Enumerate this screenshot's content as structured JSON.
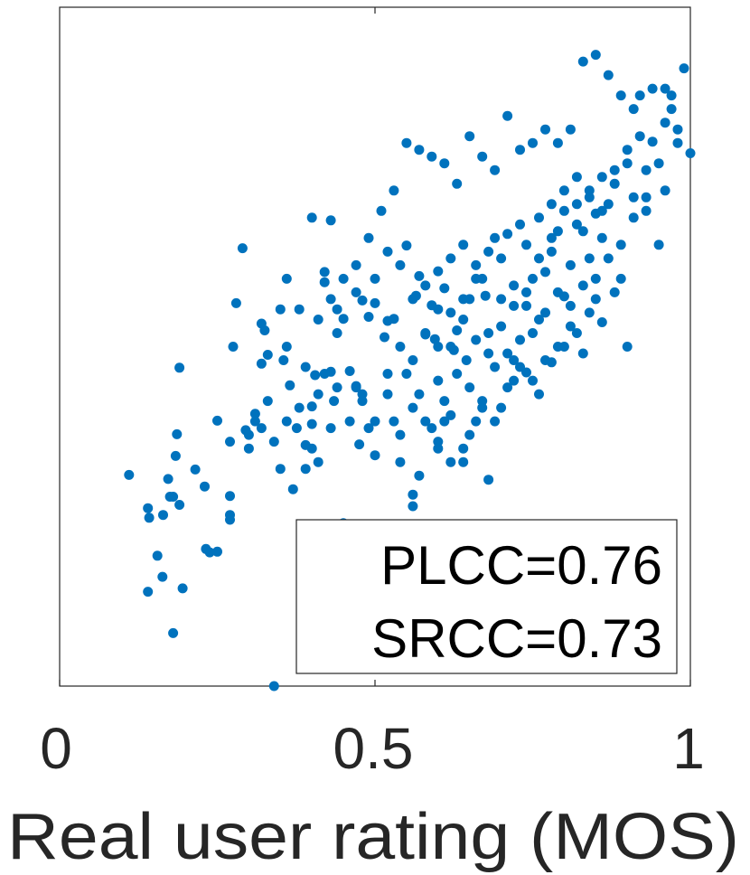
{
  "chart_data": {
    "type": "scatter",
    "title": "",
    "xlabel": "Real user rating (MOS)",
    "ylabel": "",
    "xlim": [
      0,
      1
    ],
    "ylim": [
      0,
      1
    ],
    "xticks": [
      0,
      0.5,
      1
    ],
    "xtick_labels": [
      "0",
      "0.5",
      "1"
    ],
    "grid": false,
    "marker_color": "#0072bd",
    "annotation": {
      "placement": "bottom-right",
      "lines": [
        "PLCC=0.76",
        "SRCC=0.73"
      ]
    },
    "points": [
      [
        0.11,
        0.311
      ],
      [
        0.14,
        0.262
      ],
      [
        0.142,
        0.248
      ],
      [
        0.14,
        0.139
      ],
      [
        0.155,
        0.192
      ],
      [
        0.163,
        0.161
      ],
      [
        0.164,
        0.252
      ],
      [
        0.172,
        0.305
      ],
      [
        0.175,
        0.279
      ],
      [
        0.18,
        0.279
      ],
      [
        0.18,
        0.078
      ],
      [
        0.184,
        0.339
      ],
      [
        0.186,
        0.371
      ],
      [
        0.19,
        0.267
      ],
      [
        0.195,
        0.144
      ],
      [
        0.19,
        0.469
      ],
      [
        0.215,
        0.319
      ],
      [
        0.23,
        0.294
      ],
      [
        0.232,
        0.202
      ],
      [
        0.238,
        0.197
      ],
      [
        0.25,
        0.198
      ],
      [
        0.25,
        0.391
      ],
      [
        0.27,
        0.245
      ],
      [
        0.27,
        0.252
      ],
      [
        0.275,
        0.5
      ],
      [
        0.28,
        0.564
      ],
      [
        0.29,
        0.645
      ],
      [
        0.295,
        0.377
      ],
      [
        0.31,
        0.401
      ],
      [
        0.32,
        0.534
      ],
      [
        0.32,
        0.475
      ],
      [
        0.325,
        0.524
      ],
      [
        0.33,
        0.488
      ],
      [
        0.35,
        0.555
      ],
      [
        0.36,
        0.5
      ],
      [
        0.365,
        0.443
      ],
      [
        0.376,
        0.38
      ],
      [
        0.38,
        0.555
      ],
      [
        0.39,
        0.355
      ],
      [
        0.4,
        0.386
      ],
      [
        0.4,
        0.412
      ],
      [
        0.405,
        0.458
      ],
      [
        0.41,
        0.54
      ],
      [
        0.42,
        0.61
      ],
      [
        0.42,
        0.595
      ],
      [
        0.43,
        0.463
      ],
      [
        0.43,
        0.38
      ],
      [
        0.435,
        0.42
      ],
      [
        0.44,
        0.555
      ],
      [
        0.45,
        0.541
      ],
      [
        0.46,
        0.464
      ],
      [
        0.47,
        0.442
      ],
      [
        0.475,
        0.356
      ],
      [
        0.48,
        0.568
      ],
      [
        0.49,
        0.544
      ],
      [
        0.5,
        0.564
      ],
      [
        0.515,
        0.514
      ],
      [
        0.52,
        0.538
      ],
      [
        0.53,
        0.541
      ],
      [
        0.54,
        0.62
      ],
      [
        0.55,
        0.649
      ],
      [
        0.56,
        0.57
      ],
      [
        0.565,
        0.575
      ],
      [
        0.57,
        0.604
      ],
      [
        0.58,
        0.518
      ],
      [
        0.59,
        0.561
      ],
      [
        0.595,
        0.511
      ],
      [
        0.6,
        0.611
      ],
      [
        0.6,
        0.555
      ],
      [
        0.61,
        0.586
      ],
      [
        0.62,
        0.63
      ],
      [
        0.625,
        0.495
      ],
      [
        0.63,
        0.524
      ],
      [
        0.64,
        0.65
      ],
      [
        0.645,
        0.48
      ],
      [
        0.65,
        0.57
      ],
      [
        0.66,
        0.62
      ],
      [
        0.67,
        0.6
      ],
      [
        0.675,
        0.575
      ],
      [
        0.68,
        0.52
      ],
      [
        0.69,
        0.66
      ],
      [
        0.7,
        0.63
      ],
      [
        0.71,
        0.666
      ],
      [
        0.72,
        0.59
      ],
      [
        0.73,
        0.68
      ],
      [
        0.74,
        0.56
      ],
      [
        0.75,
        0.6
      ],
      [
        0.76,
        0.54
      ],
      [
        0.77,
        0.61
      ],
      [
        0.78,
        0.64
      ],
      [
        0.79,
        0.67
      ],
      [
        0.8,
        0.574
      ],
      [
        0.81,
        0.62
      ],
      [
        0.82,
        0.71
      ],
      [
        0.83,
        0.67
      ],
      [
        0.84,
        0.63
      ],
      [
        0.85,
        0.696
      ],
      [
        0.86,
        0.66
      ],
      [
        0.87,
        0.71
      ],
      [
        0.88,
        0.74
      ],
      [
        0.89,
        0.6
      ],
      [
        0.9,
        0.77
      ],
      [
        0.91,
        0.72
      ],
      [
        0.92,
        0.81
      ],
      [
        0.93,
        0.76
      ],
      [
        0.94,
        0.802
      ],
      [
        0.95,
        0.77
      ],
      [
        0.96,
        0.83
      ],
      [
        0.97,
        0.85
      ],
      [
        0.98,
        0.82
      ],
      [
        0.99,
        0.91
      ],
      [
        1.0,
        0.785
      ],
      [
        0.95,
        0.65
      ],
      [
        0.93,
        0.7
      ],
      [
        0.56,
        0.282
      ],
      [
        0.56,
        0.265
      ],
      [
        0.42,
        0.132
      ],
      [
        0.34,
        0.0
      ],
      [
        0.54,
        0.33
      ],
      [
        0.6,
        0.35
      ],
      [
        0.62,
        0.399
      ],
      [
        0.64,
        0.33
      ],
      [
        0.66,
        0.39
      ],
      [
        0.68,
        0.304
      ],
      [
        0.7,
        0.41
      ],
      [
        0.72,
        0.45
      ],
      [
        0.74,
        0.462
      ],
      [
        0.76,
        0.43
      ],
      [
        0.78,
        0.477
      ],
      [
        0.8,
        0.5
      ],
      [
        0.82,
        0.52
      ],
      [
        0.84,
        0.55
      ],
      [
        0.86,
        0.536
      ],
      [
        0.88,
        0.58
      ],
      [
        0.9,
        0.5
      ],
      [
        0.55,
        0.46
      ],
      [
        0.57,
        0.43
      ],
      [
        0.59,
        0.38
      ],
      [
        0.61,
        0.42
      ],
      [
        0.63,
        0.46
      ],
      [
        0.65,
        0.44
      ],
      [
        0.67,
        0.41
      ],
      [
        0.69,
        0.47
      ],
      [
        0.71,
        0.49
      ],
      [
        0.73,
        0.51
      ],
      [
        0.75,
        0.52
      ],
      [
        0.77,
        0.55
      ],
      [
        0.79,
        0.58
      ],
      [
        0.81,
        0.56
      ],
      [
        0.83,
        0.59
      ],
      [
        0.85,
        0.6
      ],
      [
        0.87,
        0.63
      ],
      [
        0.89,
        0.65
      ],
      [
        0.91,
        0.69
      ],
      [
        0.48,
        0.43
      ],
      [
        0.5,
        0.39
      ],
      [
        0.52,
        0.46
      ],
      [
        0.54,
        0.5
      ],
      [
        0.56,
        0.48
      ],
      [
        0.58,
        0.52
      ],
      [
        0.6,
        0.45
      ],
      [
        0.62,
        0.5
      ],
      [
        0.64,
        0.54
      ],
      [
        0.66,
        0.51
      ],
      [
        0.68,
        0.49
      ],
      [
        0.7,
        0.53
      ],
      [
        0.72,
        0.48
      ],
      [
        0.74,
        0.58
      ],
      [
        0.76,
        0.63
      ],
      [
        0.78,
        0.66
      ],
      [
        0.8,
        0.7
      ],
      [
        0.82,
        0.68
      ],
      [
        0.84,
        0.72
      ],
      [
        0.86,
        0.75
      ],
      [
        0.4,
        0.69
      ],
      [
        0.43,
        0.686
      ],
      [
        0.36,
        0.6
      ],
      [
        0.355,
        0.48
      ],
      [
        0.41,
        0.43
      ],
      [
        0.5,
        0.6
      ],
      [
        0.52,
        0.64
      ],
      [
        0.44,
        0.52
      ],
      [
        0.47,
        0.58
      ],
      [
        0.38,
        0.41
      ],
      [
        0.39,
        0.47
      ],
      [
        0.58,
        0.59
      ],
      [
        0.6,
        0.5
      ],
      [
        0.62,
        0.55
      ],
      [
        0.64,
        0.57
      ],
      [
        0.66,
        0.6
      ],
      [
        0.68,
        0.64
      ],
      [
        0.7,
        0.57
      ],
      [
        0.72,
        0.56
      ],
      [
        0.74,
        0.65
      ],
      [
        0.76,
        0.69
      ],
      [
        0.78,
        0.71
      ],
      [
        0.8,
        0.73
      ],
      [
        0.82,
        0.75
      ],
      [
        0.84,
        0.73
      ],
      [
        0.86,
        0.7
      ],
      [
        0.88,
        0.76
      ],
      [
        0.9,
        0.79
      ],
      [
        0.92,
        0.87
      ],
      [
        0.94,
        0.88
      ],
      [
        0.96,
        0.88
      ],
      [
        0.98,
        0.8
      ],
      [
        0.97,
        0.87
      ],
      [
        0.96,
        0.73
      ],
      [
        0.93,
        0.72
      ],
      [
        0.91,
        0.85
      ],
      [
        0.89,
        0.87
      ],
      [
        0.87,
        0.9
      ],
      [
        0.85,
        0.93
      ],
      [
        0.83,
        0.92
      ],
      [
        0.81,
        0.82
      ],
      [
        0.79,
        0.8
      ],
      [
        0.77,
        0.82
      ],
      [
        0.75,
        0.8
      ],
      [
        0.73,
        0.79
      ],
      [
        0.71,
        0.84
      ],
      [
        0.69,
        0.76
      ],
      [
        0.67,
        0.78
      ],
      [
        0.65,
        0.81
      ],
      [
        0.63,
        0.74
      ],
      [
        0.61,
        0.77
      ],
      [
        0.59,
        0.78
      ],
      [
        0.57,
        0.79
      ],
      [
        0.55,
        0.8
      ],
      [
        0.53,
        0.73
      ],
      [
        0.51,
        0.7
      ],
      [
        0.49,
        0.66
      ],
      [
        0.47,
        0.62
      ],
      [
        0.45,
        0.6
      ],
      [
        0.43,
        0.57
      ],
      [
        0.64,
        0.35
      ],
      [
        0.62,
        0.33
      ],
      [
        0.6,
        0.36
      ],
      [
        0.58,
        0.39
      ],
      [
        0.56,
        0.41
      ],
      [
        0.54,
        0.37
      ],
      [
        0.52,
        0.43
      ],
      [
        0.5,
        0.34
      ],
      [
        0.48,
        0.42
      ],
      [
        0.46,
        0.39
      ],
      [
        0.44,
        0.44
      ],
      [
        0.42,
        0.46
      ],
      [
        0.4,
        0.35
      ],
      [
        0.36,
        0.39
      ],
      [
        0.34,
        0.36
      ],
      [
        0.32,
        0.38
      ],
      [
        0.31,
        0.39
      ],
      [
        0.3,
        0.37
      ],
      [
        0.3,
        0.35
      ],
      [
        0.27,
        0.36
      ],
      [
        0.27,
        0.28
      ],
      [
        0.33,
        0.42
      ],
      [
        0.35,
        0.32
      ],
      [
        0.37,
        0.29
      ],
      [
        0.39,
        0.32
      ],
      [
        0.41,
        0.33
      ],
      [
        0.45,
        0.24
      ],
      [
        0.47,
        0.44
      ],
      [
        0.49,
        0.38
      ],
      [
        0.53,
        0.39
      ],
      [
        0.57,
        0.31
      ],
      [
        0.61,
        0.39
      ],
      [
        0.65,
        0.37
      ],
      [
        0.67,
        0.42
      ],
      [
        0.69,
        0.39
      ],
      [
        0.71,
        0.44
      ],
      [
        0.73,
        0.47
      ],
      [
        0.75,
        0.45
      ],
      [
        0.77,
        0.48
      ],
      [
        0.79,
        0.5
      ],
      [
        0.81,
        0.53
      ],
      [
        0.83,
        0.49
      ],
      [
        0.85,
        0.57
      ]
    ]
  }
}
